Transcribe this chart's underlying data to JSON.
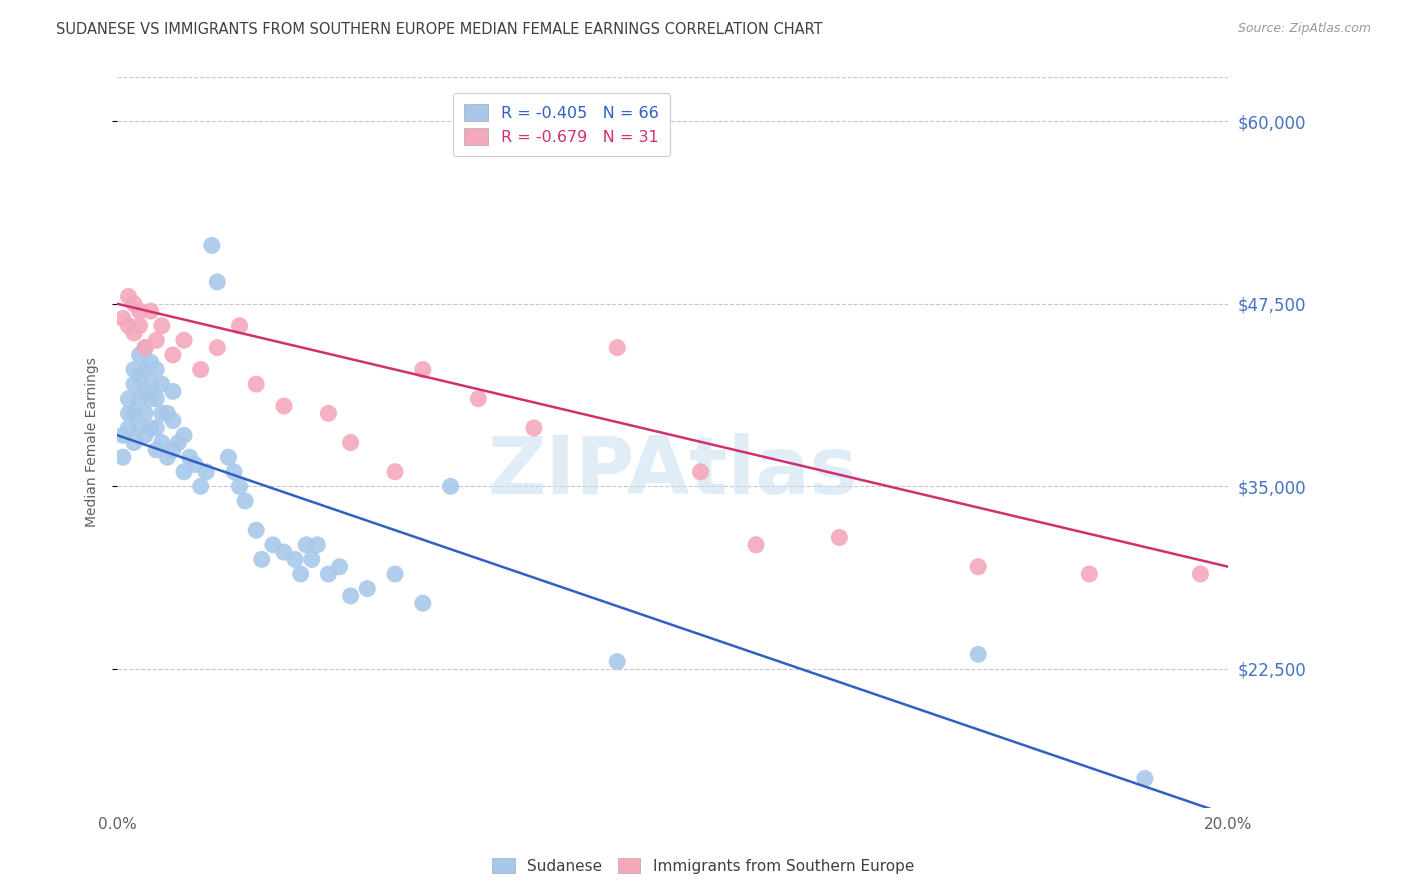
{
  "title": "SUDANESE VS IMMIGRANTS FROM SOUTHERN EUROPE MEDIAN FEMALE EARNINGS CORRELATION CHART",
  "source": "Source: ZipAtlas.com",
  "ylabel": "Median Female Earnings",
  "xlim": [
    0.0,
    0.2
  ],
  "ylim": [
    13000,
    63000
  ],
  "yticks": [
    22500,
    35000,
    47500,
    60000
  ],
  "ytick_labels": [
    "$22,500",
    "$35,000",
    "$47,500",
    "$60,000"
  ],
  "xticks": [
    0.0,
    0.05,
    0.1,
    0.15,
    0.2
  ],
  "xtick_labels": [
    "0.0%",
    "",
    "",
    "",
    "20.0%"
  ],
  "blue_color": "#A8C8EA",
  "pink_color": "#F4A8BC",
  "blue_line_color": "#3060C0",
  "pink_line_color": "#D03070",
  "R_blue": -0.405,
  "N_blue": 66,
  "R_pink": -0.679,
  "N_pink": 31,
  "legend_label_blue": "Sudanese",
  "legend_label_pink": "Immigrants from Southern Europe",
  "watermark": "ZIPAtlas",
  "background_color": "#FFFFFF",
  "grid_color": "#C8C8C8",
  "title_color": "#404040",
  "axis_label_color": "#606060",
  "ytick_color": "#4472C4",
  "blue_line_intercept": 38500,
  "blue_line_slope": -130000,
  "pink_line_intercept": 47500,
  "pink_line_slope": -90000,
  "blue_scatter_x": [
    0.001,
    0.001,
    0.002,
    0.002,
    0.002,
    0.003,
    0.003,
    0.003,
    0.003,
    0.004,
    0.004,
    0.004,
    0.004,
    0.005,
    0.005,
    0.005,
    0.005,
    0.005,
    0.006,
    0.006,
    0.006,
    0.006,
    0.007,
    0.007,
    0.007,
    0.007,
    0.008,
    0.008,
    0.008,
    0.009,
    0.009,
    0.01,
    0.01,
    0.01,
    0.011,
    0.012,
    0.012,
    0.013,
    0.014,
    0.015,
    0.016,
    0.017,
    0.018,
    0.02,
    0.021,
    0.022,
    0.023,
    0.025,
    0.026,
    0.028,
    0.03,
    0.032,
    0.033,
    0.034,
    0.035,
    0.036,
    0.038,
    0.04,
    0.042,
    0.045,
    0.05,
    0.055,
    0.06,
    0.09,
    0.155,
    0.185
  ],
  "blue_scatter_y": [
    37000,
    38500,
    39000,
    40000,
    41000,
    38000,
    40000,
    42000,
    43000,
    39000,
    41000,
    42500,
    44000,
    38500,
    40000,
    41500,
    43000,
    44500,
    39000,
    41000,
    42000,
    43500,
    37500,
    39000,
    41000,
    43000,
    38000,
    40000,
    42000,
    37000,
    40000,
    37500,
    39500,
    41500,
    38000,
    36000,
    38500,
    37000,
    36500,
    35000,
    36000,
    51500,
    49000,
    37000,
    36000,
    35000,
    34000,
    32000,
    30000,
    31000,
    30500,
    30000,
    29000,
    31000,
    30000,
    31000,
    29000,
    29500,
    27500,
    28000,
    29000,
    27000,
    35000,
    23000,
    23500,
    15000
  ],
  "pink_scatter_x": [
    0.001,
    0.002,
    0.002,
    0.003,
    0.003,
    0.004,
    0.004,
    0.005,
    0.006,
    0.007,
    0.008,
    0.01,
    0.012,
    0.015,
    0.018,
    0.022,
    0.025,
    0.03,
    0.038,
    0.042,
    0.05,
    0.055,
    0.065,
    0.075,
    0.09,
    0.105,
    0.115,
    0.13,
    0.155,
    0.175,
    0.195
  ],
  "pink_scatter_y": [
    46500,
    48000,
    46000,
    47500,
    45500,
    47000,
    46000,
    44500,
    47000,
    45000,
    46000,
    44000,
    45000,
    43000,
    44500,
    46000,
    42000,
    40500,
    40000,
    38000,
    36000,
    43000,
    41000,
    39000,
    44500,
    36000,
    31000,
    31500,
    29500,
    29000,
    29000
  ]
}
